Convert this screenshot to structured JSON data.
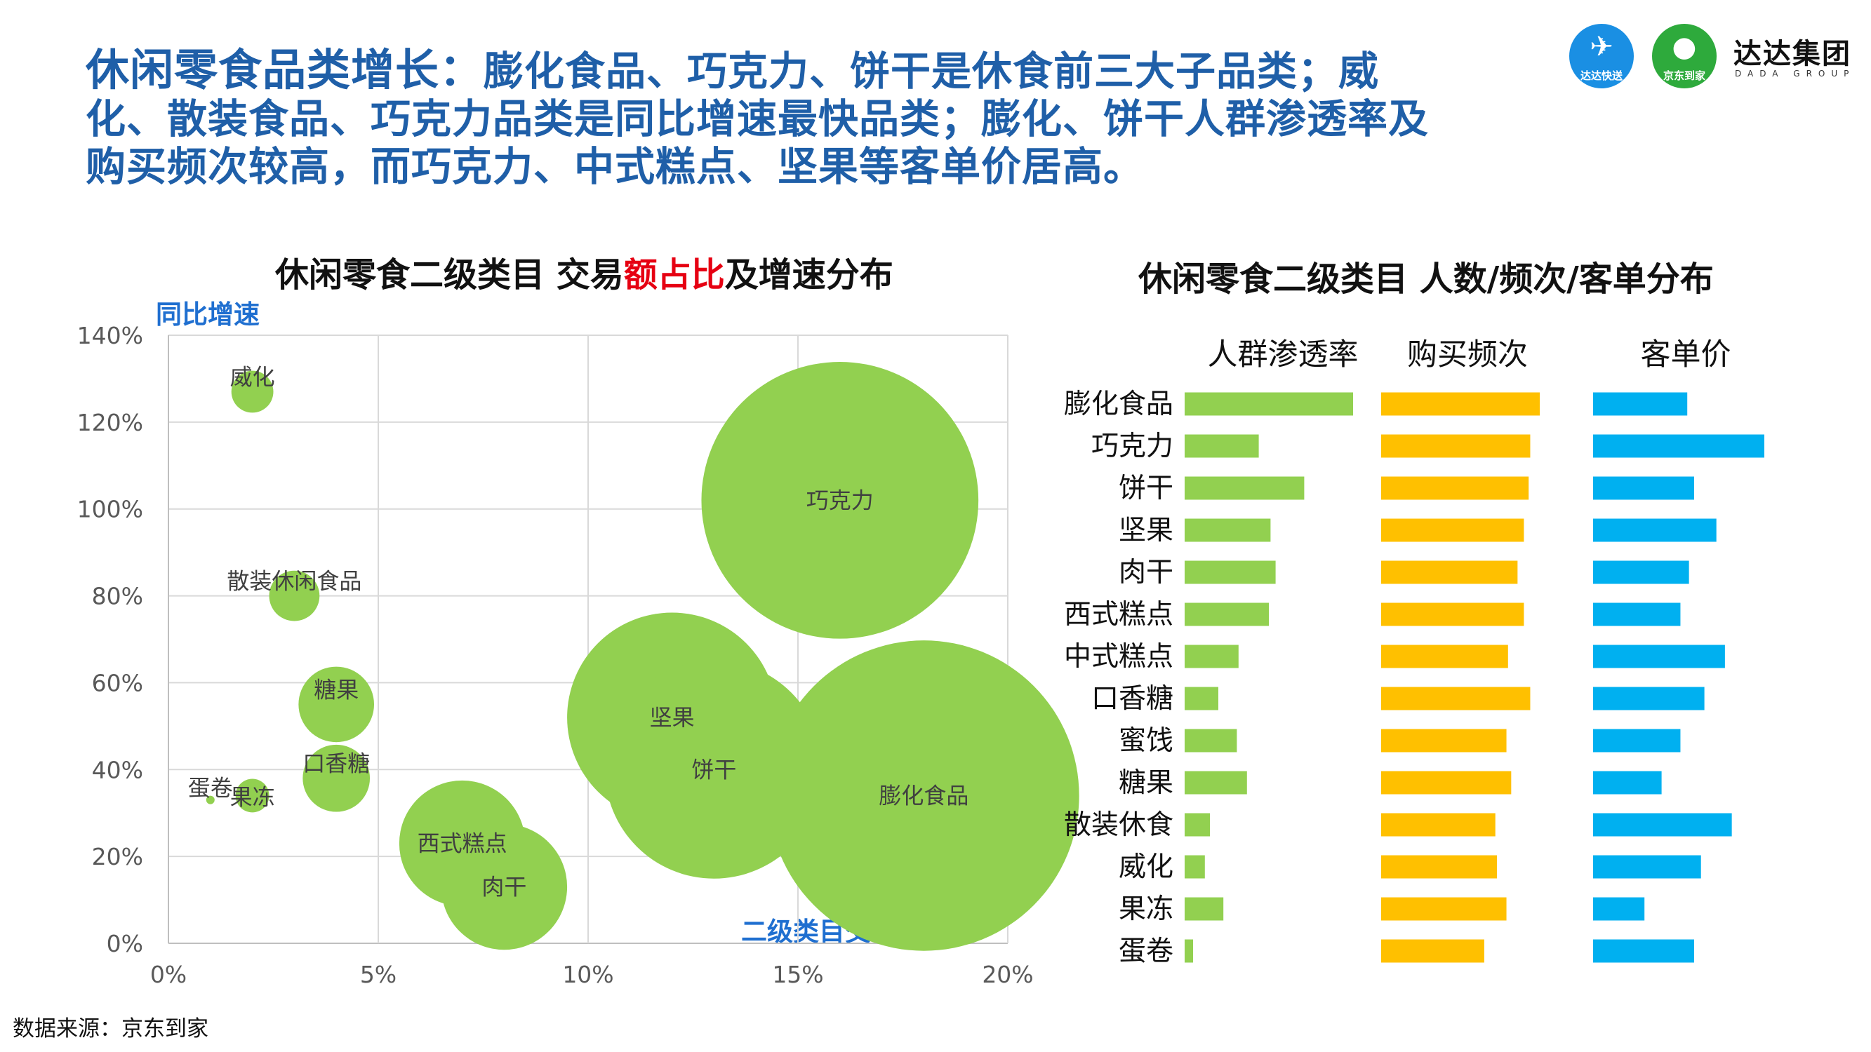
{
  "headline": {
    "lead": "休闲零食品类增长：",
    "body": "膨化食品、巧克力、饼干是休食前三大子品类；威化、散装食品、巧克力品类是同比增速最快品类；膨化、饼干人群渗透率及购买频次较高，而巧克力、中式糕点、坚果等客单价居高。"
  },
  "logo": {
    "brand1": "达达快送",
    "brand2": "京东到家",
    "group_cn": "达达集团",
    "group_en": "DADA GROUP"
  },
  "source": "数据来源：京东到家",
  "chart_data": [
    {
      "type": "scatter",
      "title_parts": [
        "休闲零食二级类目 交易",
        "额占比",
        "及增速分布"
      ],
      "xlabel": "二级类目交易额占比",
      "ylabel": "同比增速",
      "xlim": [
        0,
        20
      ],
      "ylim": [
        0,
        140
      ],
      "x_ticks": [
        "0%",
        "5%",
        "10%",
        "15%",
        "20%"
      ],
      "y_ticks": [
        "0%",
        "20%",
        "40%",
        "60%",
        "80%",
        "100%",
        "120%",
        "140%"
      ],
      "grid": true,
      "bubble_color": "#92d050",
      "points": [
        {
          "label": "威化",
          "x": 2,
          "y": 127,
          "r": 0.5
        },
        {
          "label": "巧克力",
          "x": 16,
          "y": 102,
          "r": 3.3
        },
        {
          "label": "散装休闲食品",
          "x": 3,
          "y": 80,
          "r": 0.6
        },
        {
          "label": "糖果",
          "x": 4,
          "y": 55,
          "r": 0.9
        },
        {
          "label": "坚果",
          "x": 12,
          "y": 52,
          "r": 2.5
        },
        {
          "label": "饼干",
          "x": 13,
          "y": 40,
          "r": 2.6
        },
        {
          "label": "膨化食品",
          "x": 18,
          "y": 34,
          "r": 3.7
        },
        {
          "label": "蛋卷",
          "x": 1,
          "y": 33,
          "r": 0.1
        },
        {
          "label": "果冻",
          "x": 2,
          "y": 34,
          "r": 0.4
        },
        {
          "label": "口香糖",
          "x": 4,
          "y": 38,
          "r": 0.8
        },
        {
          "label": "西式糕点",
          "x": 7,
          "y": 23,
          "r": 1.5
        },
        {
          "label": "肉干",
          "x": 8,
          "y": 13,
          "r": 1.5
        }
      ]
    },
    {
      "type": "bar",
      "title": "休闲零食二级类目 人数/频次/客单分布",
      "categories": [
        "膨化食品",
        "巧克力",
        "饼干",
        "坚果",
        "肉干",
        "西式糕点",
        "中式糕点",
        "口香糖",
        "蜜饯",
        "糖果",
        "散装休食",
        "威化",
        "果冻",
        "蛋卷"
      ],
      "series": [
        {
          "name": "人群渗透率",
          "color": "#92d050",
          "values": [
            100,
            44,
            71,
            51,
            54,
            50,
            32,
            20,
            31,
            37,
            15,
            12,
            23,
            5
          ]
        },
        {
          "name": "购买频次",
          "color": "#ffc000",
          "values": [
            100,
            94,
            93,
            90,
            86,
            90,
            80,
            94,
            79,
            82,
            72,
            73,
            79,
            65
          ]
        },
        {
          "name": "客单价",
          "color": "#00b0f0",
          "values": [
            55,
            100,
            59,
            72,
            56,
            51,
            77,
            65,
            51,
            40,
            81,
            63,
            30,
            59
          ]
        }
      ]
    }
  ]
}
